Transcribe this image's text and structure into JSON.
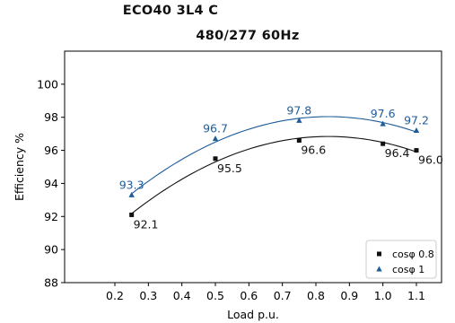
{
  "chart_data": {
    "type": "scatter",
    "title": "ECO40 3L4 C",
    "subtitle": "480/277 60Hz",
    "xlabel": "Load p.u.",
    "ylabel": "Efficiency %",
    "xlim": [
      0.05,
      1.175
    ],
    "ylim": [
      88,
      102
    ],
    "xticks": [
      0.2,
      0.3,
      0.4,
      0.5,
      0.6,
      0.7,
      0.8,
      0.9,
      1.0,
      1.1
    ],
    "xtick_labels": [
      "0.2",
      "0.3",
      "0.4",
      "0.5",
      "0.6",
      "0.7",
      "0.8",
      "0.9",
      "1.0",
      "1.1"
    ],
    "yticks": [
      88,
      90,
      92,
      94,
      96,
      98,
      100
    ],
    "ytick_labels": [
      "88",
      "90",
      "92",
      "94",
      "96",
      "98",
      "100"
    ],
    "grid": false,
    "legend": "lower right",
    "series": [
      {
        "name": "cosφ 0.8",
        "marker": "square",
        "color": "#111111",
        "x": [
          0.25,
          0.5,
          0.75,
          1.0,
          1.1
        ],
        "y": [
          92.1,
          95.5,
          96.6,
          96.4,
          96.0
        ],
        "labels": [
          "92.1",
          "95.5",
          "96.6",
          "96.4",
          "96.0"
        ]
      },
      {
        "name": "cosφ 1",
        "marker": "triangle",
        "color": "#1f5c99",
        "x": [
          0.25,
          0.5,
          0.75,
          1.0,
          1.1
        ],
        "y": [
          93.3,
          96.7,
          97.8,
          97.6,
          97.2
        ],
        "labels": [
          "93.3",
          "96.7",
          "97.8",
          "97.6",
          "97.2"
        ]
      }
    ]
  }
}
